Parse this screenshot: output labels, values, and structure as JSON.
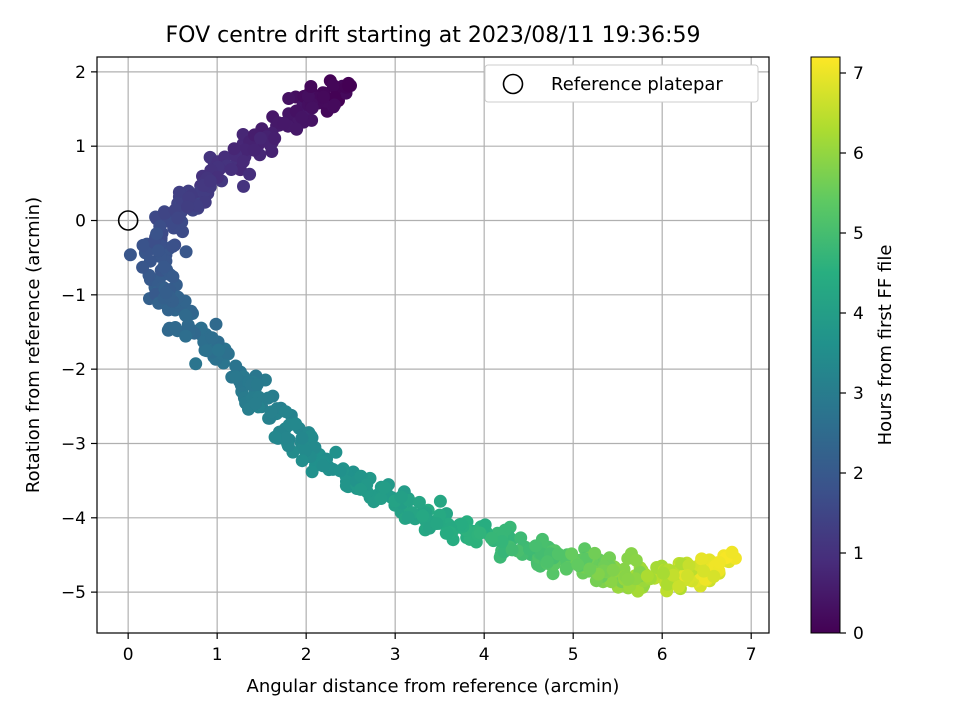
{
  "chart_data": {
    "type": "scatter",
    "title": "FOV centre drift starting at 2023/08/11 19:36:59",
    "xlabel": "Angular distance from reference (arcmin)",
    "ylabel": "Rotation from reference (arcmin)",
    "xlim": [
      -0.35,
      7.2
    ],
    "ylim": [
      -5.55,
      2.2
    ],
    "xticks": [
      0,
      1,
      2,
      3,
      4,
      5,
      6,
      7
    ],
    "yticks": [
      -5,
      -4,
      -3,
      -2,
      -1,
      0,
      1,
      2
    ],
    "grid": true,
    "legend": {
      "placement": "top-right",
      "entries": [
        "Reference platepar"
      ]
    },
    "reference_point": {
      "name": "Reference platepar",
      "x": 0,
      "y": 0,
      "marker": "hollow circle"
    },
    "colorbar": {
      "label": "Hours from first FF file",
      "range": [
        0,
        7.2
      ],
      "ticks": [
        0,
        1,
        2,
        3,
        4,
        5,
        6,
        7
      ],
      "colormap": "viridis"
    },
    "trend_path": [
      {
        "h": 0.0,
        "x": 2.45,
        "y": 1.78
      },
      {
        "h": 0.3,
        "x": 2.0,
        "y": 1.55
      },
      {
        "h": 0.6,
        "x": 1.6,
        "y": 1.2
      },
      {
        "h": 0.9,
        "x": 1.2,
        "y": 0.8
      },
      {
        "h": 1.2,
        "x": 0.85,
        "y": 0.45
      },
      {
        "h": 1.5,
        "x": 0.55,
        "y": 0.15
      },
      {
        "h": 1.8,
        "x": 0.35,
        "y": -0.3
      },
      {
        "h": 2.1,
        "x": 0.35,
        "y": -0.85
      },
      {
        "h": 2.4,
        "x": 0.6,
        "y": -1.3
      },
      {
        "h": 2.7,
        "x": 1.0,
        "y": -1.8
      },
      {
        "h": 3.0,
        "x": 1.4,
        "y": -2.35
      },
      {
        "h": 3.3,
        "x": 1.85,
        "y": -2.85
      },
      {
        "h": 3.6,
        "x": 2.3,
        "y": -3.3
      },
      {
        "h": 3.9,
        "x": 2.8,
        "y": -3.65
      },
      {
        "h": 4.2,
        "x": 3.3,
        "y": -3.95
      },
      {
        "h": 4.5,
        "x": 3.8,
        "y": -4.15
      },
      {
        "h": 4.8,
        "x": 4.3,
        "y": -4.35
      },
      {
        "h": 5.1,
        "x": 4.7,
        "y": -4.5
      },
      {
        "h": 5.4,
        "x": 5.05,
        "y": -4.62
      },
      {
        "h": 5.7,
        "x": 5.35,
        "y": -4.7
      },
      {
        "h": 6.0,
        "x": 5.65,
        "y": -4.75
      },
      {
        "h": 6.3,
        "x": 5.95,
        "y": -4.78
      },
      {
        "h": 6.6,
        "x": 6.25,
        "y": -4.75
      },
      {
        "h": 6.9,
        "x": 6.5,
        "y": -4.7
      },
      {
        "h": 7.15,
        "x": 6.7,
        "y": -4.6
      }
    ],
    "sample_count": 620,
    "seed": 7
  }
}
